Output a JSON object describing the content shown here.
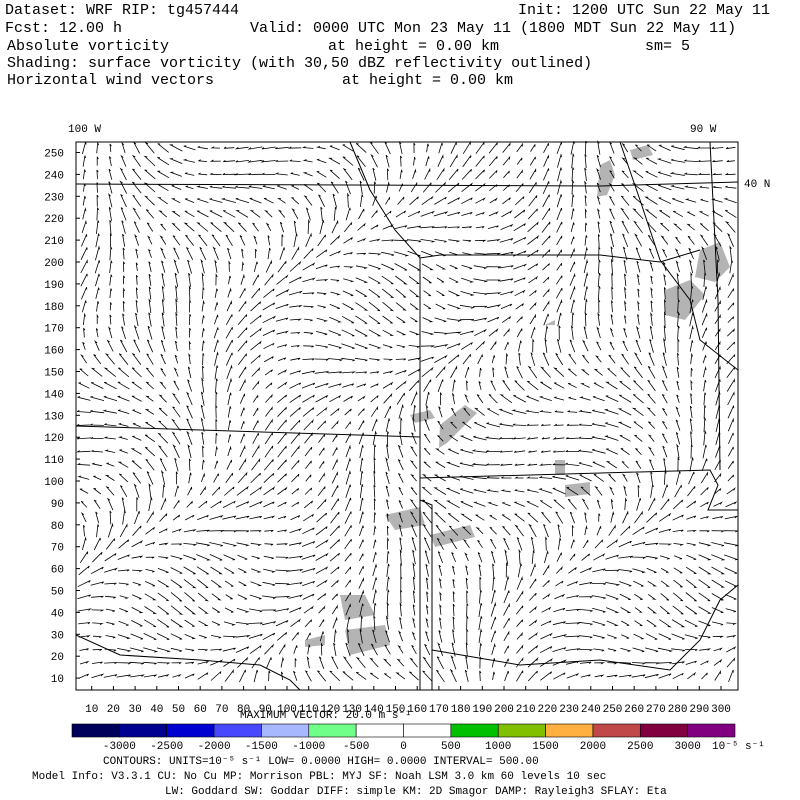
{
  "header": {
    "dataset": "Dataset: WRF  RIP: tg457444",
    "init": "Init: 1200 UTC Sun 22 May 11",
    "fcst": "Fcst:   12.00 h",
    "valid": "Valid: 0000 UTC Mon 23 May 11 (1800 MDT Sun 22 May 11)",
    "field": "Absolute vorticity",
    "field_height": "at height =   0.00 km",
    "smoothing": "sm= 5",
    "shading": "Shading: surface vorticity (with 30,50 dBZ reflectivity outlined)",
    "vectors": "Horizontal wind vectors",
    "vectors_height": "at height =   0.00 km"
  },
  "map": {
    "lon_labels": [
      "100 W",
      "90 W"
    ],
    "lat_label": "40 N",
    "yticks": [
      10,
      20,
      30,
      40,
      50,
      60,
      70,
      80,
      90,
      100,
      110,
      120,
      130,
      140,
      150,
      160,
      170,
      180,
      190,
      200,
      210,
      220,
      230,
      240,
      250
    ],
    "xticks": [
      10,
      20,
      30,
      40,
      50,
      60,
      70,
      80,
      90,
      100,
      110,
      120,
      130,
      140,
      150,
      160,
      170,
      180,
      190,
      200,
      210,
      220,
      230,
      240,
      250,
      260,
      270,
      280,
      290,
      300
    ],
    "max_vector": "MAXIMUM VECTOR:  20.0 m s⁻¹"
  },
  "colorbar": {
    "colors": [
      "#00005a",
      "#000090",
      "#0000d0",
      "#4848ff",
      "#a8b8ff",
      "#70ff88",
      "#ffffff",
      "#ffffff",
      "#00c000",
      "#80c000",
      "#ffb040",
      "#c04848",
      "#800040",
      "#800080"
    ],
    "labels": [
      -3000,
      -2500,
      -2000,
      -1500,
      -1000,
      -500,
      0,
      500,
      1000,
      1500,
      2000,
      2500,
      3000
    ],
    "units": "10⁻⁵ s⁻¹"
  },
  "footer": {
    "contours": "CONTOURS:  UNITS=10⁻⁵ s⁻¹   LOW=  0.0000          HIGH=  0.0000        INTERVAL=   500.00",
    "model": "Model Info: V3.3.1    CU: No Cu     MP: Morrison      PBL: MYJ       SF: Noah LSM     3.0 km   60 levels    10 sec",
    "physics": "LW: Goddard  SW: Goddar  DIFF: simple  KM: 2D Smagor  DAMP: Rayleigh3   SFLAY: Eta"
  }
}
